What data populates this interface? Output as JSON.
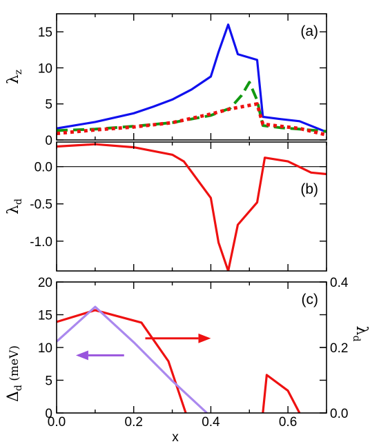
{
  "xlabel": "x",
  "x_ticks": [
    "0.0",
    "0.2",
    "0.4",
    "0.6"
  ],
  "chart_data": [
    {
      "panel": "a",
      "type": "line",
      "label": "(a)",
      "ylabel": "λ",
      "ylabel_sub": "z",
      "xlim": [
        0,
        0.7
      ],
      "ylim": [
        0,
        17.5
      ],
      "yticks": [
        "0",
        "5",
        "10",
        "15"
      ],
      "series": [
        {
          "color": "#1010ee",
          "dash": "solid",
          "x": [
            0.0,
            0.1,
            0.2,
            0.25,
            0.3,
            0.35,
            0.4,
            0.42,
            0.445,
            0.47,
            0.52,
            0.535,
            0.58,
            0.63,
            0.7
          ],
          "y": [
            1.6,
            2.5,
            3.7,
            4.6,
            5.6,
            7.0,
            8.8,
            12.2,
            16.0,
            11.9,
            11.1,
            3.2,
            2.9,
            2.6,
            1.1
          ]
        },
        {
          "color": "#119911",
          "dash": "dashed",
          "x": [
            0.0,
            0.1,
            0.2,
            0.3,
            0.4,
            0.45,
            0.48,
            0.5,
            0.52,
            0.535,
            0.58,
            0.63,
            0.7
          ],
          "y": [
            1.3,
            1.5,
            1.9,
            2.4,
            3.4,
            4.4,
            6.2,
            8.0,
            5.5,
            2.0,
            1.7,
            1.5,
            1.2
          ]
        },
        {
          "color": "#ee1111",
          "dash": "dotted",
          "x": [
            0.0,
            0.1,
            0.2,
            0.3,
            0.4,
            0.45,
            0.52,
            0.535,
            0.58,
            0.63,
            0.7
          ],
          "y": [
            0.9,
            1.4,
            1.8,
            2.4,
            3.6,
            4.3,
            5.0,
            2.2,
            1.9,
            1.6,
            0.7
          ]
        }
      ]
    },
    {
      "panel": "b",
      "type": "line",
      "label": "(b)",
      "ylabel": "λ",
      "ylabel_sub": "d",
      "xlim": [
        0,
        0.7
      ],
      "ylim": [
        -1.4,
        0.33
      ],
      "yticks": [
        "0.0",
        "-0.5",
        "-1.0"
      ],
      "ytick_values": [
        0.0,
        -0.5,
        -1.0
      ],
      "zero_line": true,
      "series": [
        {
          "color": "#ee1111",
          "dash": "solid",
          "x": [
            0.0,
            0.1,
            0.2,
            0.3,
            0.33,
            0.35,
            0.4,
            0.42,
            0.445,
            0.47,
            0.52,
            0.54,
            0.6,
            0.66,
            0.7
          ],
          "y": [
            0.27,
            0.3,
            0.26,
            0.16,
            0.07,
            -0.07,
            -0.42,
            -1.02,
            -1.4,
            -0.78,
            -0.48,
            0.12,
            0.07,
            -0.08,
            -0.1
          ]
        }
      ]
    },
    {
      "panel": "c",
      "type": "line",
      "label": "(c)",
      "ylabel": "Δ",
      "ylabel_sub": "d",
      "ylabel_unit": " (meV)",
      "y2label": "λ",
      "y2label_sub": "d",
      "xlim": [
        0,
        0.7
      ],
      "ylim": [
        0,
        20
      ],
      "yticks": [
        "0",
        "5",
        "10",
        "15",
        "20"
      ],
      "y2lim": [
        0,
        0.4
      ],
      "y2ticks": [
        "0.0",
        "0.2",
        "0.4"
      ],
      "y2tick_values": [
        0.0,
        0.2,
        0.4
      ],
      "series": [
        {
          "color": "#ee1111",
          "dash": "solid",
          "axis": "y",
          "x": [
            0.0,
            0.1,
            0.22,
            0.29,
            0.335
          ],
          "y": [
            13.9,
            15.7,
            13.8,
            7.9,
            0
          ]
        },
        {
          "color": "#ee1111",
          "dash": "solid",
          "axis": "y",
          "x": [
            0.535,
            0.545,
            0.6,
            0.63
          ],
          "y": [
            0,
            5.8,
            3.4,
            0
          ]
        },
        {
          "color": "#aa88ee",
          "dash": "solid",
          "axis": "y",
          "x": [
            0.0,
            0.1,
            0.2,
            0.3,
            0.39
          ],
          "y": [
            10.9,
            16.2,
            10.8,
            4.9,
            0
          ]
        }
      ],
      "arrows": [
        {
          "color": "#ee1111",
          "direction": "right",
          "x_from": 0.23,
          "x_to": 0.4,
          "y": 11.4
        },
        {
          "color": "#9955dd",
          "direction": "left",
          "x_from": 0.175,
          "x_to": 0.05,
          "y": 8.8
        }
      ]
    }
  ]
}
